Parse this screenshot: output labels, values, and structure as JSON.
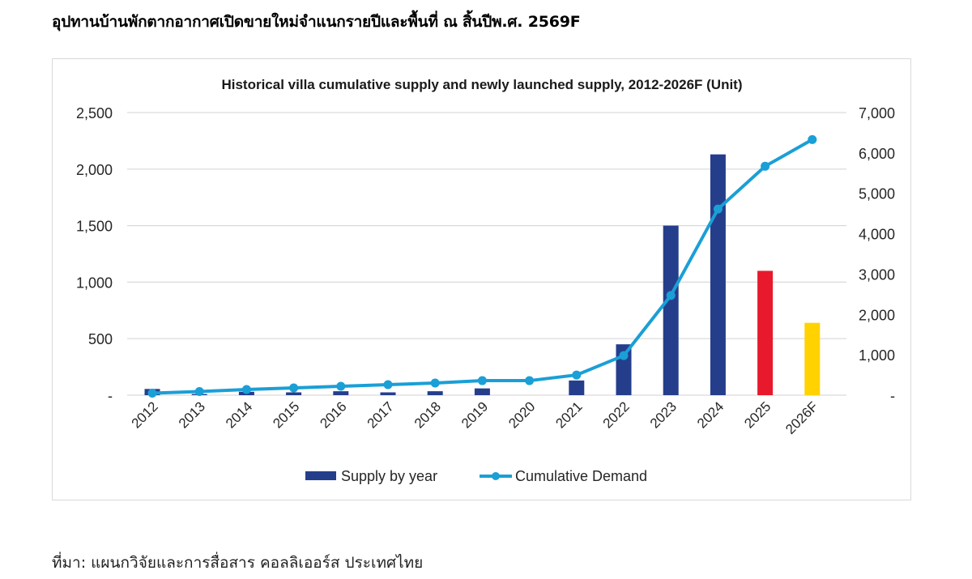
{
  "page": {
    "title": "อุปทานบ้านพักตากอากาศเปิดขายใหม่จำแนกรายปีและพื้นที่ ณ สิ้นปีพ.ศ. 2569F",
    "source": "ที่มา: แผนกวิจัยและการสื่อสาร คอลลิเออร์ส ประเทศไทย"
  },
  "chart_data": {
    "type": "bar+line",
    "title": "Historical villa cumulative supply and newly launched supply, 2012-2026F (Unit)",
    "categories": [
      "2012",
      "2013",
      "2014",
      "2015",
      "2016",
      "2017",
      "2018",
      "2019",
      "2020",
      "2021",
      "2022",
      "2023",
      "2024",
      "2025",
      "2026F"
    ],
    "series": [
      {
        "name": "Supply by year",
        "type": "bar",
        "axis": "left",
        "color": "#253e8c",
        "values": [
          55,
          10,
          30,
          25,
          35,
          25,
          35,
          60,
          0,
          130,
          450,
          1500,
          2130,
          1100,
          640
        ],
        "bar_colors": [
          "#253e8c",
          "#253e8c",
          "#253e8c",
          "#253e8c",
          "#253e8c",
          "#253e8c",
          "#253e8c",
          "#253e8c",
          "#253e8c",
          "#253e8c",
          "#253e8c",
          "#253e8c",
          "#253e8c",
          "#e8192c",
          "#ffd200"
        ]
      },
      {
        "name": "Cumulative Demand",
        "type": "line",
        "axis": "right",
        "color": "#1a9fd6",
        "values": [
          50,
          90,
          140,
          180,
          220,
          260,
          300,
          360,
          360,
          500,
          980,
          2470,
          4610,
          5670,
          6330
        ]
      }
    ],
    "left_axis": {
      "ylim": [
        0,
        2500
      ],
      "ticks": [
        "-",
        "500",
        "1,000",
        "1,500",
        "2,000",
        "2,500"
      ],
      "tick_values": [
        0,
        500,
        1000,
        1500,
        2000,
        2500
      ]
    },
    "right_axis": {
      "ylim": [
        0,
        7000
      ],
      "ticks": [
        "-",
        "1,000",
        "2,000",
        "3,000",
        "4,000",
        "5,000",
        "6,000",
        "7,000"
      ],
      "tick_values": [
        0,
        1000,
        2000,
        3000,
        4000,
        5000,
        6000,
        7000
      ]
    },
    "xlabel": "",
    "ylabel": "",
    "grid": true,
    "legend_position": "bottom",
    "legend": [
      "Supply by year",
      "Cumulative Demand"
    ]
  }
}
